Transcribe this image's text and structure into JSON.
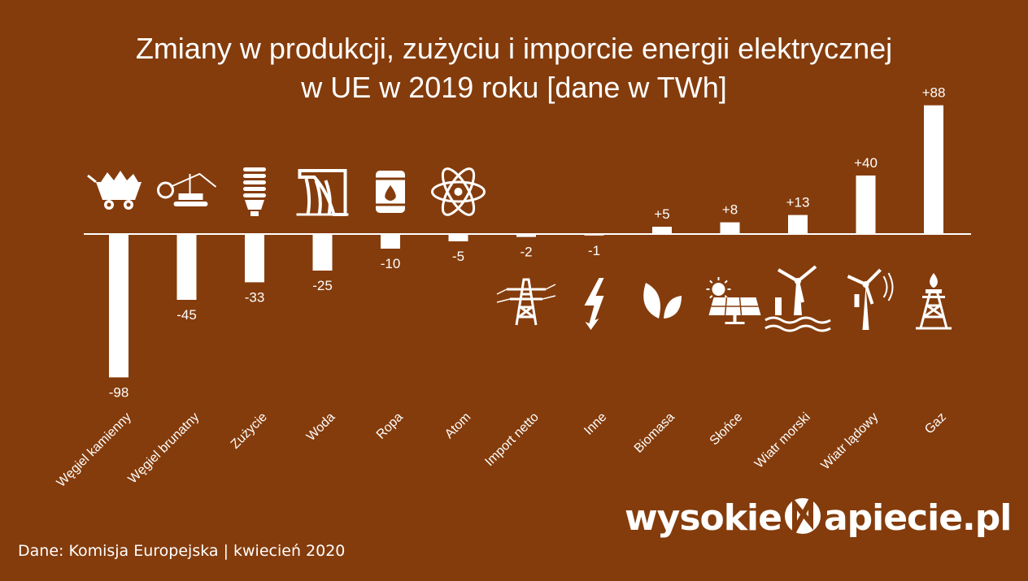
{
  "title_line1": "Zmiany w produkcji, zużyciu i imporcie energii elektrycznej",
  "title_line2": "w UE w 2019 roku [dane w TWh]",
  "footer": "Dane: Komisja Europejska  |  kwiecień 2020",
  "brand": {
    "left": "wysokie",
    "right": "apiecie.pl"
  },
  "colors": {
    "background": "#843c0c",
    "bars": "#ffffff"
  },
  "chart_data": {
    "type": "bar",
    "categories": [
      "Węgiel kamienny",
      "Węgiel brunatny",
      "Zużycie",
      "Woda",
      "Ropa",
      "Atom",
      "Import netto",
      "Inne",
      "Biomasa",
      "Słońce",
      "Wiatr morski",
      "Wiatr lądowy",
      "Gaz"
    ],
    "values": [
      -98,
      -45,
      -33,
      -25,
      -10,
      -5,
      -2,
      -1,
      5,
      8,
      13,
      40,
      88
    ],
    "value_labels": [
      "-98",
      "-45",
      "-33",
      "-25",
      "-10",
      "-5",
      "-2",
      "-1",
      "+5",
      "+8",
      "+13",
      "+40",
      "+88"
    ],
    "icons": [
      "coal-cart-icon",
      "excavator-icon",
      "lightbulb-icon",
      "dam-icon",
      "oil-barrel-icon",
      "atom-icon",
      "power-pylon-icon",
      "lightning-icon",
      "leaf-icon",
      "solar-panel-icon",
      "offshore-wind-icon",
      "wind-turbine-icon",
      "gas-rig-icon"
    ],
    "title": "Zmiany w produkcji, zużyciu i imporcie energii elektrycznej w UE w 2019 roku [dane w TWh]",
    "xlabel": "",
    "ylabel": "",
    "grid": false,
    "legend": "none"
  }
}
